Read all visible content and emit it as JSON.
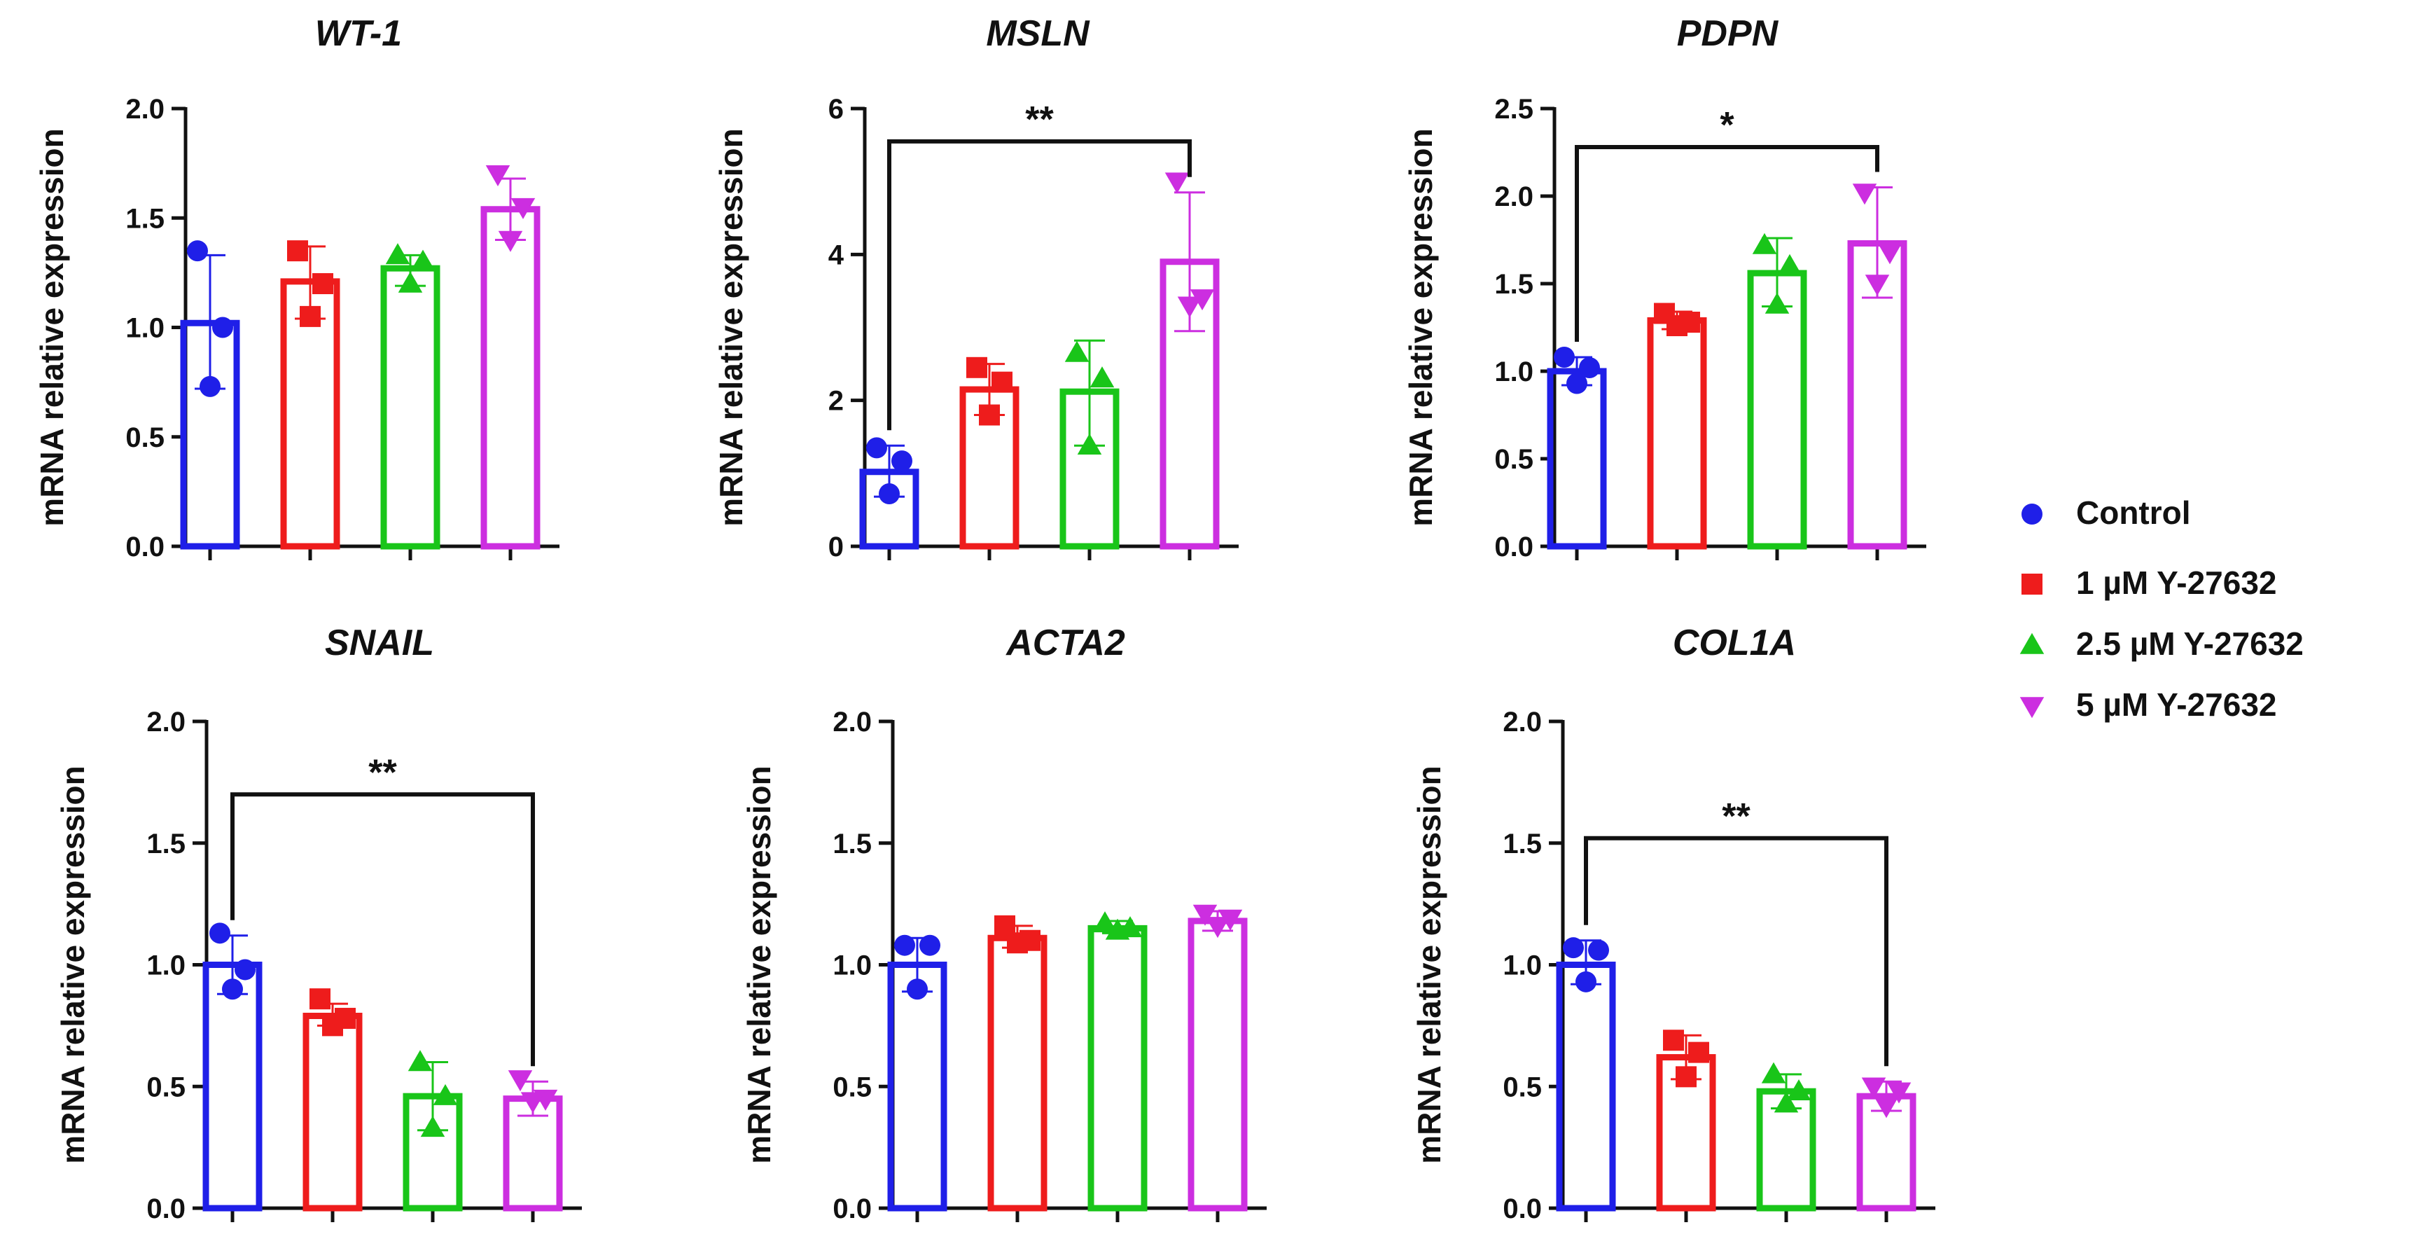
{
  "series_names": [
    "Control",
    "1 µM Y-27632",
    "2.5 µM Y-27632",
    "5 µM Y-27632"
  ],
  "series_colors": [
    "#1f1fe8",
    "#ee1c1c",
    "#19c519",
    "#cc2ee0"
  ],
  "marker_shapes": [
    "circle",
    "square",
    "triangle-up",
    "triangle-down"
  ],
  "ylabel": "mRNA relative expression",
  "chart_data": [
    {
      "type": "bar",
      "title": "WT-1",
      "ylabel": "mRNA relative expression",
      "ylim": [
        0,
        2.0
      ],
      "yticks": [
        "0.0",
        "0.5",
        "1.0",
        "1.5",
        "2.0"
      ],
      "ytick_values": [
        0,
        0.5,
        1.0,
        1.5,
        2.0
      ],
      "series": [
        {
          "name": "Control",
          "mean": 1.02,
          "sd_low": 0.72,
          "sd_high": 1.33,
          "points": [
            1.35,
            1.0,
            0.73
          ]
        },
        {
          "name": "1 µM Y-27632",
          "mean": 1.21,
          "sd_low": 1.04,
          "sd_high": 1.37,
          "points": [
            1.35,
            1.2,
            1.05
          ]
        },
        {
          "name": "2.5 µM Y-27632",
          "mean": 1.27,
          "sd_low": 1.19,
          "sd_high": 1.33,
          "points": [
            1.33,
            1.3,
            1.2
          ]
        },
        {
          "name": "5 µM Y-27632",
          "mean": 1.54,
          "sd_low": 1.4,
          "sd_high": 1.68,
          "points": [
            1.7,
            1.55,
            1.4
          ]
        }
      ],
      "significance": []
    },
    {
      "type": "bar",
      "title": "MSLN",
      "ylabel": "mRNA relative expression",
      "ylim": [
        0,
        6
      ],
      "yticks": [
        "0",
        "2",
        "4",
        "6"
      ],
      "ytick_values": [
        0,
        2,
        4,
        6
      ],
      "series": [
        {
          "name": "Control",
          "mean": 1.02,
          "sd_low": 0.68,
          "sd_high": 1.38,
          "points": [
            1.35,
            1.17,
            0.72
          ]
        },
        {
          "name": "1 µM Y-27632",
          "mean": 2.15,
          "sd_low": 1.8,
          "sd_high": 2.5,
          "points": [
            2.45,
            2.25,
            1.8
          ]
        },
        {
          "name": "2.5 µM Y-27632",
          "mean": 2.12,
          "sd_low": 1.38,
          "sd_high": 2.82,
          "points": [
            2.65,
            2.3,
            1.38
          ]
        },
        {
          "name": "5 µM Y-27632",
          "mean": 3.9,
          "sd_low": 2.95,
          "sd_high": 4.85,
          "points": [
            5.0,
            3.4,
            3.3
          ]
        }
      ],
      "significance": [
        {
          "from": 0,
          "to": 3,
          "label": "**",
          "level": 5.55
        }
      ]
    },
    {
      "type": "bar",
      "title": "PDPN",
      "ylabel": "mRNA relative expression",
      "ylim": [
        0,
        2.5
      ],
      "yticks": [
        "0.0",
        "0.5",
        "1.0",
        "1.5",
        "2.0",
        "2.5"
      ],
      "ytick_values": [
        0,
        0.5,
        1.0,
        1.5,
        2.0,
        2.5
      ],
      "series": [
        {
          "name": "Control",
          "mean": 1.0,
          "sd_low": 0.92,
          "sd_high": 1.08,
          "points": [
            1.08,
            1.02,
            0.93
          ]
        },
        {
          "name": "1 µM Y-27632",
          "mean": 1.29,
          "sd_low": 1.24,
          "sd_high": 1.34,
          "points": [
            1.33,
            1.28,
            1.26
          ]
        },
        {
          "name": "2.5 µM Y-27632",
          "mean": 1.56,
          "sd_low": 1.37,
          "sd_high": 1.76,
          "points": [
            1.72,
            1.6,
            1.38
          ]
        },
        {
          "name": "5 µM Y-27632",
          "mean": 1.73,
          "sd_low": 1.42,
          "sd_high": 2.05,
          "points": [
            2.02,
            1.68,
            1.5
          ]
        }
      ],
      "significance": [
        {
          "from": 0,
          "to": 3,
          "label": "*",
          "level": 2.28
        }
      ]
    },
    {
      "type": "bar",
      "title": "SNAIL",
      "ylabel": "mRNA relative expression",
      "ylim": [
        0,
        2.0
      ],
      "yticks": [
        "0.0",
        "0.5",
        "1.0",
        "1.5",
        "2.0"
      ],
      "ytick_values": [
        0,
        0.5,
        1.0,
        1.5,
        2.0
      ],
      "series": [
        {
          "name": "Control",
          "mean": 1.0,
          "sd_low": 0.88,
          "sd_high": 1.12,
          "points": [
            1.13,
            0.98,
            0.9
          ]
        },
        {
          "name": "1 µM Y-27632",
          "mean": 0.79,
          "sd_low": 0.75,
          "sd_high": 0.84,
          "points": [
            0.86,
            0.78,
            0.75
          ]
        },
        {
          "name": "2.5 µM Y-27632",
          "mean": 0.46,
          "sd_low": 0.32,
          "sd_high": 0.6,
          "points": [
            0.6,
            0.46,
            0.33
          ]
        },
        {
          "name": "5 µM Y-27632",
          "mean": 0.45,
          "sd_low": 0.38,
          "sd_high": 0.52,
          "points": [
            0.53,
            0.45,
            0.44
          ]
        }
      ],
      "significance": [
        {
          "from": 0,
          "to": 3,
          "label": "**",
          "level": 1.7
        }
      ]
    },
    {
      "type": "bar",
      "title": "ACTA2",
      "ylabel": "mRNA relative expression",
      "ylim": [
        0,
        2.0
      ],
      "yticks": [
        "0.0",
        "0.5",
        "1.0",
        "1.5",
        "2.0"
      ],
      "ytick_values": [
        0,
        0.5,
        1.0,
        1.5,
        2.0
      ],
      "series": [
        {
          "name": "Control",
          "mean": 1.0,
          "sd_low": 0.89,
          "sd_high": 1.11,
          "points": [
            1.08,
            1.08,
            0.9
          ]
        },
        {
          "name": "1 µM Y-27632",
          "mean": 1.11,
          "sd_low": 1.07,
          "sd_high": 1.16,
          "points": [
            1.16,
            1.1,
            1.09
          ]
        },
        {
          "name": "2.5 µM Y-27632",
          "mean": 1.15,
          "sd_low": 1.13,
          "sd_high": 1.18,
          "points": [
            1.17,
            1.15,
            1.14
          ]
        },
        {
          "name": "5 µM Y-27632",
          "mean": 1.18,
          "sd_low": 1.14,
          "sd_high": 1.22,
          "points": [
            1.21,
            1.19,
            1.16
          ]
        }
      ],
      "significance": []
    },
    {
      "type": "bar",
      "title": "COL1A",
      "ylabel": "mRNA relative expression",
      "ylim": [
        0,
        2.0
      ],
      "yticks": [
        "0.0",
        "0.5",
        "1.0",
        "1.5",
        "2.0"
      ],
      "ytick_values": [
        0,
        0.5,
        1.0,
        1.5,
        2.0
      ],
      "series": [
        {
          "name": "Control",
          "mean": 1.0,
          "sd_low": 0.92,
          "sd_high": 1.1,
          "points": [
            1.07,
            1.06,
            0.93
          ]
        },
        {
          "name": "1 µM Y-27632",
          "mean": 0.62,
          "sd_low": 0.53,
          "sd_high": 0.71,
          "points": [
            0.69,
            0.64,
            0.54
          ]
        },
        {
          "name": "2.5 µM Y-27632",
          "mean": 0.48,
          "sd_low": 0.41,
          "sd_high": 0.55,
          "points": [
            0.55,
            0.48,
            0.43
          ]
        },
        {
          "name": "5 µM Y-27632",
          "mean": 0.46,
          "sd_low": 0.4,
          "sd_high": 0.52,
          "points": [
            0.5,
            0.48,
            0.42
          ]
        }
      ],
      "significance": [
        {
          "from": 0,
          "to": 3,
          "label": "**",
          "level": 1.52
        }
      ]
    }
  ]
}
